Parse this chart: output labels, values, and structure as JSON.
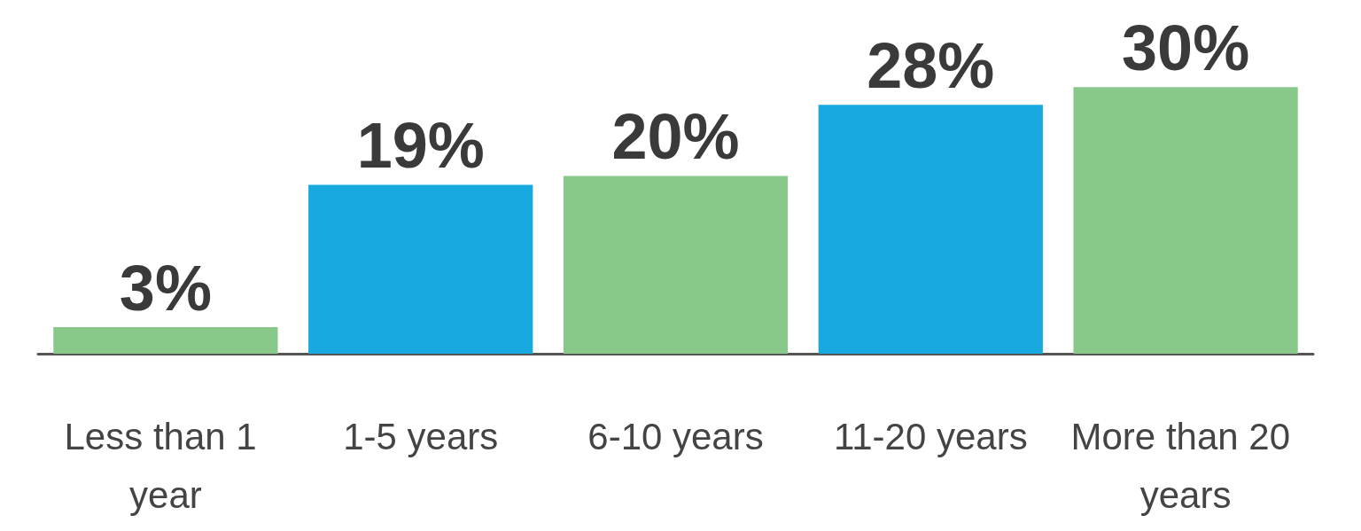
{
  "chart_data": {
    "type": "bar",
    "categories": [
      "Less than 1 year",
      "1-5 years",
      "6-10 years",
      "11-20 years",
      "More than 20 years"
    ],
    "values": [
      3,
      19,
      20,
      28,
      30
    ],
    "colors": [
      "#88c88a",
      "#18a9e1",
      "#88c88a",
      "#18a9e1",
      "#88c88a"
    ],
    "value_labels": [
      "3%",
      "19%",
      "20%",
      "28%",
      "30%"
    ],
    "grid": false
  }
}
